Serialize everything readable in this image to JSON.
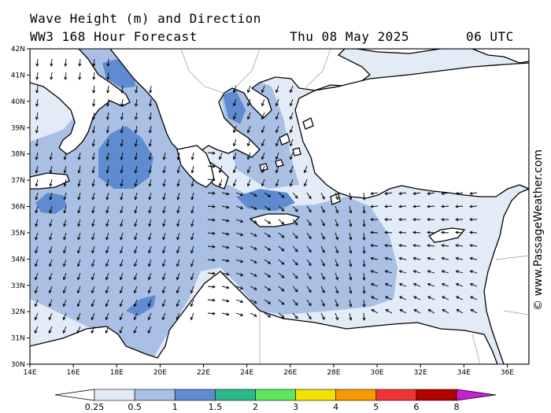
{
  "header": {
    "title_line1": "Wave Height (m) and Direction",
    "title_line2": "WW3 168 Hour Forecast",
    "date": "Thu 08 May 2025",
    "time": "06 UTC"
  },
  "credit": "© www.PassageWeather.com",
  "axes": {
    "lon_labels": [
      "14E",
      "16E",
      "18E",
      "20E",
      "22E",
      "24E",
      "26E",
      "28E",
      "30E",
      "32E",
      "34E",
      "36E"
    ],
    "lat_labels": [
      "42N",
      "41N",
      "40N",
      "39N",
      "38N",
      "37N",
      "36N",
      "35N",
      "34N",
      "33N",
      "32N",
      "31N",
      "30N"
    ],
    "lon_range": [
      14,
      37
    ],
    "lat_range": [
      30,
      42
    ]
  },
  "legend": {
    "labels": [
      "0.25",
      "0.5",
      "1",
      "1.5",
      "2",
      "3",
      "4",
      "5",
      "6",
      "8"
    ],
    "colors": [
      "#ffffff",
      "#e3ebf7",
      "#a9c0e4",
      "#5f8bd0",
      "#29b88a",
      "#5de65a",
      "#f2e200",
      "#f59a00",
      "#ee3434",
      "#b30000",
      "#c71fd3"
    ]
  },
  "colors": {
    "sea_low": "#e3ebf7",
    "sea_mid": "#a9c0e4",
    "sea_high": "#5f8bd0",
    "land": "#ffffff",
    "coast": "#000000",
    "arrow": "#000000"
  }
}
